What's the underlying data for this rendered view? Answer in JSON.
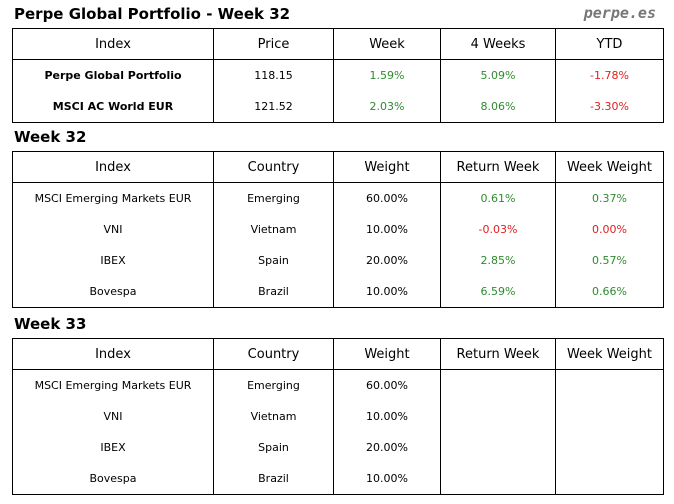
{
  "header": {
    "title": "Perpe Global Portfolio - Week 32",
    "site": "perpe.es"
  },
  "summary_table": {
    "columns": [
      "Index",
      "Price",
      "Week",
      "4 Weeks",
      "YTD"
    ],
    "rows": [
      [
        "Perpe Global Portfolio",
        "118.15",
        "1.59%",
        "5.09%",
        "-1.78%"
      ],
      [
        "MSCI AC World EUR",
        "121.52",
        "2.03%",
        "8.06%",
        "-3.30%"
      ]
    ]
  },
  "week32": {
    "title": "Week 32",
    "columns": [
      "Index",
      "Country",
      "Weight",
      "Return Week",
      "Week Weight"
    ],
    "rows": [
      [
        "MSCI Emerging Markets EUR",
        "Emerging",
        "60.00%",
        "0.61%",
        "0.37%"
      ],
      [
        "VNI",
        "Vietnam",
        "10.00%",
        "-0.03%",
        "0.00%"
      ],
      [
        "IBEX",
        "Spain",
        "20.00%",
        "2.85%",
        "0.57%"
      ],
      [
        "Bovespa",
        "Brazil",
        "10.00%",
        "6.59%",
        "0.66%"
      ]
    ]
  },
  "week33": {
    "title": "Week 33",
    "columns": [
      "Index",
      "Country",
      "Weight",
      "Return Week",
      "Week Weight"
    ],
    "rows": [
      [
        "MSCI Emerging Markets EUR",
        "Emerging",
        "60.00%"
      ],
      [
        "VNI",
        "Vietnam",
        "10.00%"
      ],
      [
        "IBEX",
        "Spain",
        "20.00%"
      ],
      [
        "Bovespa",
        "Brazil",
        "10.00%"
      ]
    ]
  }
}
